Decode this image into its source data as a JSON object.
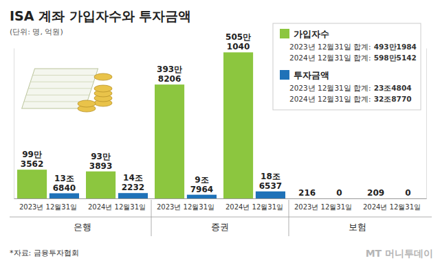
{
  "chart_data": {
    "type": "bar",
    "title": "ISA 계좌 가입자수와 투자금액",
    "subtitle": "(단위: 명, 억원)",
    "categories": [
      "2023년 12월31일",
      "2024년 12월31일",
      "2023년 12월31일",
      "2024년 12월31일",
      "2023년 12월31일",
      "2024년 12월31일"
    ],
    "category_groups": [
      "은행",
      "증권",
      "보험"
    ],
    "series": [
      {
        "name": "가입자수",
        "color": "#8cc63f",
        "values": [
          993562,
          933893,
          3938206,
          5051040,
          216,
          209
        ],
        "value_labels": [
          "99만\n3562",
          "93만\n3893",
          "393만\n8206",
          "505만\n1040",
          "216",
          "209"
        ],
        "totals": [
          "2023년 12월31일 합계:",
          "2024년 12월31일 합계:"
        ],
        "total_labels": [
          "493만1984",
          "598만5142"
        ]
      },
      {
        "name": "투자금액",
        "color": "#1f72b8",
        "axis": "y2",
        "values": [
          136840,
          142232,
          97964,
          186537,
          0,
          0
        ],
        "value_labels": [
          "13조\n6840",
          "14조\n2232",
          "9조\n7964",
          "18조\n6537",
          "0",
          "0"
        ],
        "totals": [
          "2023년 12월31일 합계:",
          "2024년 12월31일 합계:"
        ],
        "total_labels": [
          "23조4804",
          "32조8770"
        ]
      }
    ],
    "ylim": [
      0,
      5200000
    ],
    "y2lim": [
      0,
      4000000
    ],
    "data_labels": true,
    "tick_labels": "x",
    "legend": "top-right",
    "grid": false,
    "source": "*자료: 금융투자협회",
    "credit": "MT 머니투데이"
  }
}
